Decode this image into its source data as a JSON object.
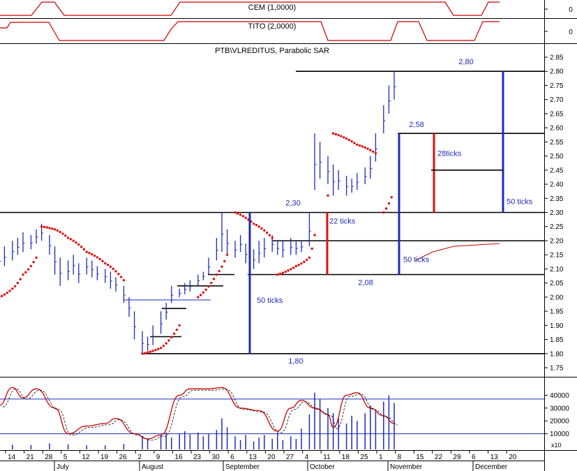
{
  "panels": {
    "cem": {
      "label": "CEM (1,0000)",
      "axis_value": "0"
    },
    "tito": {
      "label": "TITO (2,0000)",
      "axis_value": "0"
    },
    "main": {
      "title": "PTB\\VLREDITUS, Parabolic SAR"
    },
    "lower": {
      "unit_label": "x10"
    }
  },
  "colors": {
    "price_bars": "#1f2bb8",
    "sar_dots": "#e01010",
    "indicator_line": "#cc0000",
    "support_lines": "#000000",
    "measure_blue": "#1f2bb8",
    "measure_red": "#e01010",
    "grid_blue": "#1f2bb8"
  },
  "chart_data": {
    "type": "bar",
    "subtype": "ohlc-with-parabolic-sar",
    "title": "PTB\\VLREDITUS, Parabolic SAR",
    "y_axis": {
      "ticks": [
        "1.75",
        "1.80",
        "1.85",
        "1.90",
        "1.95",
        "2.00",
        "2.05",
        "2.10",
        "2.15",
        "2.20",
        "2.25",
        "2.30",
        "2.35",
        "2.40",
        "2.45",
        "2.50",
        "2.55",
        "2.60",
        "2.65",
        "2.70",
        "2.75",
        "2.80",
        "2.85"
      ],
      "range": [
        1.75,
        2.85
      ]
    },
    "x_axis": {
      "day_labels": [
        "14",
        "21",
        "28",
        "5",
        "12",
        "19",
        "26",
        "2",
        "9",
        "16",
        "23",
        "30",
        "6",
        "13",
        "20",
        "27",
        "4",
        "11",
        "18",
        "25",
        "1",
        "8",
        "15",
        "22",
        "29",
        "6",
        "13",
        "20"
      ],
      "month_labels": [
        "July",
        "August",
        "September",
        "October",
        "November",
        "December"
      ]
    },
    "horizontal_levels": [
      1.8,
      2.08,
      2.2,
      2.3,
      2.58,
      2.8
    ],
    "annotations": [
      {
        "text": "2,80",
        "value": 2.8
      },
      {
        "text": "2,58",
        "value": 2.58
      },
      {
        "text": "2,30",
        "value": 2.3
      },
      {
        "text": "2,08",
        "value": 2.08
      },
      {
        "text": "1,80",
        "value": 1.8
      },
      {
        "text": "50 ticks",
        "from": 1.8,
        "to": 2.3
      },
      {
        "text": "22 ticks",
        "from": 2.08,
        "to": 2.3
      },
      {
        "text": "50 ticks",
        "from": 2.08,
        "to": 2.58
      },
      {
        "text": "28ticks",
        "from": 2.3,
        "to": 2.58
      },
      {
        "text": "50 ticks",
        "from": 2.3,
        "to": 2.8
      }
    ],
    "price_series": [
      {
        "d": "2024-07-10",
        "lo": 2.1,
        "hi": 2.16
      },
      {
        "d": "2024-07-12",
        "lo": 2.11,
        "hi": 2.18
      },
      {
        "d": "2024-07-15",
        "lo": 2.13,
        "hi": 2.2
      },
      {
        "d": "2024-07-17",
        "lo": 2.15,
        "hi": 2.21
      },
      {
        "d": "2024-07-19",
        "lo": 2.16,
        "hi": 2.23
      },
      {
        "d": "2024-07-22",
        "lo": 2.17,
        "hi": 2.22
      },
      {
        "d": "2024-07-24",
        "lo": 2.19,
        "hi": 2.24
      },
      {
        "d": "2024-07-26",
        "lo": 2.2,
        "hi": 2.26
      },
      {
        "d": "2024-07-29",
        "lo": 2.15,
        "hi": 2.22
      },
      {
        "d": "2024-07-31",
        "lo": 2.08,
        "hi": 2.18
      },
      {
        "d": "2024-08-02",
        "lo": 2.04,
        "hi": 2.14
      },
      {
        "d": "2024-08-05",
        "lo": 2.06,
        "hi": 2.13
      },
      {
        "d": "2024-08-07",
        "lo": 2.08,
        "hi": 2.15
      },
      {
        "d": "2024-08-09",
        "lo": 2.05,
        "hi": 2.12
      },
      {
        "d": "2024-08-12",
        "lo": 2.08,
        "hi": 2.14
      },
      {
        "d": "2024-08-14",
        "lo": 2.07,
        "hi": 2.13
      },
      {
        "d": "2024-08-16",
        "lo": 2.06,
        "hi": 2.11
      },
      {
        "d": "2024-08-19",
        "lo": 2.05,
        "hi": 2.1
      },
      {
        "d": "2024-08-21",
        "lo": 2.03,
        "hi": 2.09
      },
      {
        "d": "2024-08-23",
        "lo": 2.02,
        "hi": 2.07
      },
      {
        "d": "2024-08-26",
        "lo": 1.98,
        "hi": 2.04
      },
      {
        "d": "2024-08-28",
        "lo": 1.93,
        "hi": 2.0
      },
      {
        "d": "2024-08-30",
        "lo": 1.85,
        "hi": 1.95
      },
      {
        "d": "2024-09-02",
        "lo": 1.8,
        "hi": 1.88
      },
      {
        "d": "2024-09-04",
        "lo": 1.81,
        "hi": 1.86
      },
      {
        "d": "2024-09-06",
        "lo": 1.83,
        "hi": 1.9
      },
      {
        "d": "2024-09-09",
        "lo": 1.87,
        "hi": 1.95
      },
      {
        "d": "2024-09-11",
        "lo": 1.92,
        "hi": 1.98
      },
      {
        "d": "2024-09-13",
        "lo": 1.98,
        "hi": 2.04
      },
      {
        "d": "2024-09-16",
        "lo": 2.0,
        "hi": 2.03
      },
      {
        "d": "2024-09-18",
        "lo": 2.01,
        "hi": 2.05
      },
      {
        "d": "2024-09-20",
        "lo": 2.02,
        "hi": 2.06
      },
      {
        "d": "2024-09-23",
        "lo": 2.04,
        "hi": 2.08
      },
      {
        "d": "2024-09-25",
        "lo": 2.06,
        "hi": 2.09
      },
      {
        "d": "2024-09-27",
        "lo": 2.08,
        "hi": 2.14
      },
      {
        "d": "2024-09-30",
        "lo": 2.13,
        "hi": 2.21
      },
      {
        "d": "2024-10-02",
        "lo": 2.16,
        "hi": 2.3
      },
      {
        "d": "2024-10-04",
        "lo": 2.15,
        "hi": 2.24
      },
      {
        "d": "2024-10-07",
        "lo": 2.14,
        "hi": 2.2
      },
      {
        "d": "2024-10-09",
        "lo": 2.16,
        "hi": 2.22
      },
      {
        "d": "2024-10-11",
        "lo": 2.12,
        "hi": 2.19
      },
      {
        "d": "2024-10-14",
        "lo": 2.1,
        "hi": 2.17
      },
      {
        "d": "2024-10-16",
        "lo": 2.12,
        "hi": 2.2
      },
      {
        "d": "2024-10-18",
        "lo": 2.14,
        "hi": 2.21
      },
      {
        "d": "2024-10-21",
        "lo": 2.16,
        "hi": 2.22
      },
      {
        "d": "2024-10-23",
        "lo": 2.15,
        "hi": 2.2
      },
      {
        "d": "2024-10-25",
        "lo": 2.14,
        "hi": 2.2
      },
      {
        "d": "2024-10-28",
        "lo": 2.15,
        "hi": 2.21
      },
      {
        "d": "2024-10-30",
        "lo": 2.15,
        "hi": 2.2
      },
      {
        "d": "2024-11-01",
        "lo": 2.16,
        "hi": 2.2
      },
      {
        "d": "2024-11-04",
        "lo": 2.18,
        "hi": 2.3
      },
      {
        "d": "2024-11-06",
        "lo": 2.38,
        "hi": 2.58
      },
      {
        "d": "2024-11-08",
        "lo": 2.42,
        "hi": 2.55
      },
      {
        "d": "2024-11-11",
        "lo": 2.4,
        "hi": 2.5
      },
      {
        "d": "2024-11-13",
        "lo": 2.36,
        "hi": 2.47
      },
      {
        "d": "2024-11-15",
        "lo": 2.38,
        "hi": 2.45
      },
      {
        "d": "2024-11-18",
        "lo": 2.36,
        "hi": 2.43
      },
      {
        "d": "2024-11-20",
        "lo": 2.37,
        "hi": 2.42
      },
      {
        "d": "2024-11-22",
        "lo": 2.38,
        "hi": 2.44
      },
      {
        "d": "2024-11-25",
        "lo": 2.4,
        "hi": 2.46
      },
      {
        "d": "2024-11-27",
        "lo": 2.42,
        "hi": 2.5
      },
      {
        "d": "2024-11-29",
        "lo": 2.48,
        "hi": 2.58
      },
      {
        "d": "2024-12-02",
        "lo": 2.58,
        "hi": 2.68
      },
      {
        "d": "2024-12-04",
        "lo": 2.65,
        "hi": 2.75
      },
      {
        "d": "2024-12-06",
        "lo": 2.7,
        "hi": 2.8
      }
    ],
    "sar_series": [
      {
        "d": "2024-07-10",
        "v": 2.0
      },
      {
        "d": "2024-07-15",
        "v": 2.03
      },
      {
        "d": "2024-07-19",
        "v": 2.08
      },
      {
        "d": "2024-07-24",
        "v": 2.14
      },
      {
        "d": "2024-07-26",
        "v": 2.25
      },
      {
        "d": "2024-07-31",
        "v": 2.24
      },
      {
        "d": "2024-08-05",
        "v": 2.21
      },
      {
        "d": "2024-08-12",
        "v": 2.16
      },
      {
        "d": "2024-08-19",
        "v": 2.12
      },
      {
        "d": "2024-08-26",
        "v": 2.06
      },
      {
        "d": "2024-09-02",
        "v": 1.8
      },
      {
        "d": "2024-09-09",
        "v": 1.82
      },
      {
        "d": "2024-09-16",
        "v": 1.9
      },
      {
        "d": "2024-09-23",
        "v": 2.0
      },
      {
        "d": "2024-09-30",
        "v": 2.08
      },
      {
        "d": "2024-10-04",
        "v": 2.15
      },
      {
        "d": "2024-10-07",
        "v": 2.3
      },
      {
        "d": "2024-10-14",
        "v": 2.26
      },
      {
        "d": "2024-10-21",
        "v": 2.21
      },
      {
        "d": "2024-10-23",
        "v": 2.08
      },
      {
        "d": "2024-10-30",
        "v": 2.11
      },
      {
        "d": "2024-11-04",
        "v": 2.14
      },
      {
        "d": "2024-11-06",
        "v": 2.22
      },
      {
        "d": "2024-11-11",
        "v": 2.36
      },
      {
        "d": "2024-11-13",
        "v": 2.58
      },
      {
        "d": "2024-11-22",
        "v": 2.54
      },
      {
        "d": "2024-11-29",
        "v": 2.51
      },
      {
        "d": "2024-12-02",
        "v": 2.3
      },
      {
        "d": "2024-12-06",
        "v": 2.38
      }
    ],
    "lower_panel": {
      "y_ticks": [
        "10000",
        "20000",
        "30000",
        "40000"
      ],
      "y_unit": "x10",
      "range": [
        0,
        50000
      ],
      "h_lines": [
        10000,
        37000
      ],
      "volume": [
        {
          "d": "2024-07-10",
          "v": 800
        },
        {
          "d": "2024-07-15",
          "v": 1500
        },
        {
          "d": "2024-07-22",
          "v": 1200
        },
        {
          "d": "2024-07-29",
          "v": 2500
        },
        {
          "d": "2024-08-05",
          "v": 1800
        },
        {
          "d": "2024-08-12",
          "v": 1000
        },
        {
          "d": "2024-08-19",
          "v": 900
        },
        {
          "d": "2024-08-26",
          "v": 2000
        },
        {
          "d": "2024-09-02",
          "v": 8000
        },
        {
          "d": "2024-09-04",
          "v": 6000
        },
        {
          "d": "2024-09-09",
          "v": 9000
        },
        {
          "d": "2024-09-11",
          "v": 11000
        },
        {
          "d": "2024-09-13",
          "v": 7000
        },
        {
          "d": "2024-09-16",
          "v": 10000
        },
        {
          "d": "2024-09-18",
          "v": 12000
        },
        {
          "d": "2024-09-20",
          "v": 9500
        },
        {
          "d": "2024-09-23",
          "v": 11000
        },
        {
          "d": "2024-09-25",
          "v": 8000
        },
        {
          "d": "2024-09-27",
          "v": 10000
        },
        {
          "d": "2024-09-30",
          "v": 13000
        },
        {
          "d": "2024-10-02",
          "v": 22000
        },
        {
          "d": "2024-10-04",
          "v": 15000
        },
        {
          "d": "2024-10-07",
          "v": 8000
        },
        {
          "d": "2024-10-09",
          "v": 5000
        },
        {
          "d": "2024-10-11",
          "v": 9000
        },
        {
          "d": "2024-10-14",
          "v": 4000
        },
        {
          "d": "2024-10-16",
          "v": 7000
        },
        {
          "d": "2024-10-18",
          "v": 9000
        },
        {
          "d": "2024-10-21",
          "v": 6000
        },
        {
          "d": "2024-10-23",
          "v": 11000
        },
        {
          "d": "2024-10-25",
          "v": 5000
        },
        {
          "d": "2024-10-28",
          "v": 8000
        },
        {
          "d": "2024-10-30",
          "v": 6000
        },
        {
          "d": "2024-11-01",
          "v": 14000
        },
        {
          "d": "2024-11-04",
          "v": 25000
        },
        {
          "d": "2024-11-06",
          "v": 42000
        },
        {
          "d": "2024-11-08",
          "v": 37000
        },
        {
          "d": "2024-11-11",
          "v": 30000
        },
        {
          "d": "2024-11-13",
          "v": 26000
        },
        {
          "d": "2024-11-15",
          "v": 22000
        },
        {
          "d": "2024-11-18",
          "v": 18000
        },
        {
          "d": "2024-11-20",
          "v": 24000
        },
        {
          "d": "2024-11-22",
          "v": 20000
        },
        {
          "d": "2024-11-25",
          "v": 26000
        },
        {
          "d": "2024-11-27",
          "v": 32000
        },
        {
          "d": "2024-11-29",
          "v": 28000
        },
        {
          "d": "2024-12-02",
          "v": 35000
        },
        {
          "d": "2024-12-04",
          "v": 40000
        },
        {
          "d": "2024-12-06",
          "v": 34000
        }
      ],
      "k_line": [
        {
          "d": "2024-07-10",
          "v": 32000
        },
        {
          "d": "2024-07-15",
          "v": 46000
        },
        {
          "d": "2024-07-19",
          "v": 38000
        },
        {
          "d": "2024-07-24",
          "v": 45000
        },
        {
          "d": "2024-07-31",
          "v": 30000
        },
        {
          "d": "2024-08-05",
          "v": 10000
        },
        {
          "d": "2024-08-12",
          "v": 16000
        },
        {
          "d": "2024-08-19",
          "v": 18000
        },
        {
          "d": "2024-08-23",
          "v": 22000
        },
        {
          "d": "2024-08-30",
          "v": 10000
        },
        {
          "d": "2024-09-04",
          "v": 6000
        },
        {
          "d": "2024-09-09",
          "v": 9000
        },
        {
          "d": "2024-09-16",
          "v": 40000
        },
        {
          "d": "2024-09-20",
          "v": 45000
        },
        {
          "d": "2024-09-27",
          "v": 45000
        },
        {
          "d": "2024-10-02",
          "v": 46000
        },
        {
          "d": "2024-10-09",
          "v": 30000
        },
        {
          "d": "2024-10-16",
          "v": 28000
        },
        {
          "d": "2024-10-23",
          "v": 12000
        },
        {
          "d": "2024-10-28",
          "v": 30000
        },
        {
          "d": "2024-11-01",
          "v": 36000
        },
        {
          "d": "2024-11-06",
          "v": 30000
        },
        {
          "d": "2024-11-11",
          "v": 25000
        },
        {
          "d": "2024-11-13",
          "v": 15000
        },
        {
          "d": "2024-11-18",
          "v": 40000
        },
        {
          "d": "2024-11-22",
          "v": 42000
        },
        {
          "d": "2024-11-27",
          "v": 30000
        },
        {
          "d": "2024-12-02",
          "v": 24000
        },
        {
          "d": "2024-12-06",
          "v": 18000
        }
      ]
    }
  }
}
